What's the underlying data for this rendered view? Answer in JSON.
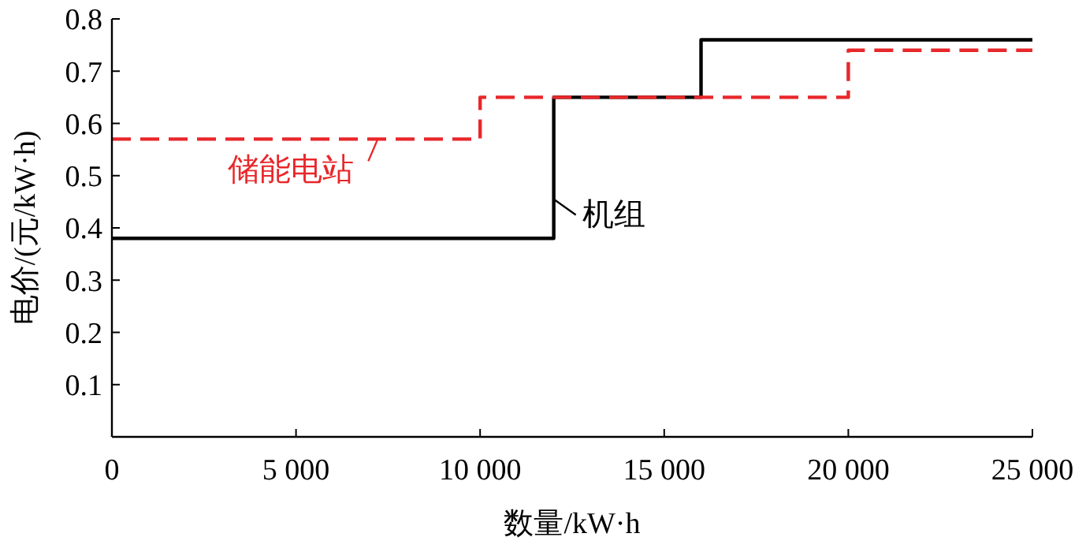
{
  "chart_data": {
    "type": "step",
    "xlabel": "数量/kW·h",
    "ylabel": "电价/(元/kW·h)",
    "xlim": [
      0,
      25000
    ],
    "xticks": [
      0,
      {
        "value": 5000,
        "label": "5 000"
      },
      {
        "value": 10000,
        "label": "10 000"
      },
      {
        "value": 15000,
        "label": "15 000"
      },
      {
        "value": 20000,
        "label": "20 000"
      },
      {
        "value": 25000,
        "label": "25 000"
      }
    ],
    "ylim": [
      0,
      0.8
    ],
    "yticks": [
      {
        "value": 0,
        "label": null
      },
      0.1,
      0.2,
      0.3,
      0.4,
      0.5,
      0.6,
      0.7,
      0.8
    ],
    "grid": false,
    "series": [
      {
        "name": "机组",
        "color": "#000000",
        "line_style": "solid",
        "x": [
          0,
          12000,
          16000,
          25000
        ],
        "values": [
          0.38,
          0.65,
          0.76,
          0.76
        ]
      },
      {
        "name": "储能电站",
        "color": "#e8272a",
        "line_style": "dashed",
        "x": [
          0,
          10000,
          20000,
          25000
        ],
        "values": [
          0.57,
          0.65,
          0.74,
          0.74
        ]
      }
    ]
  }
}
